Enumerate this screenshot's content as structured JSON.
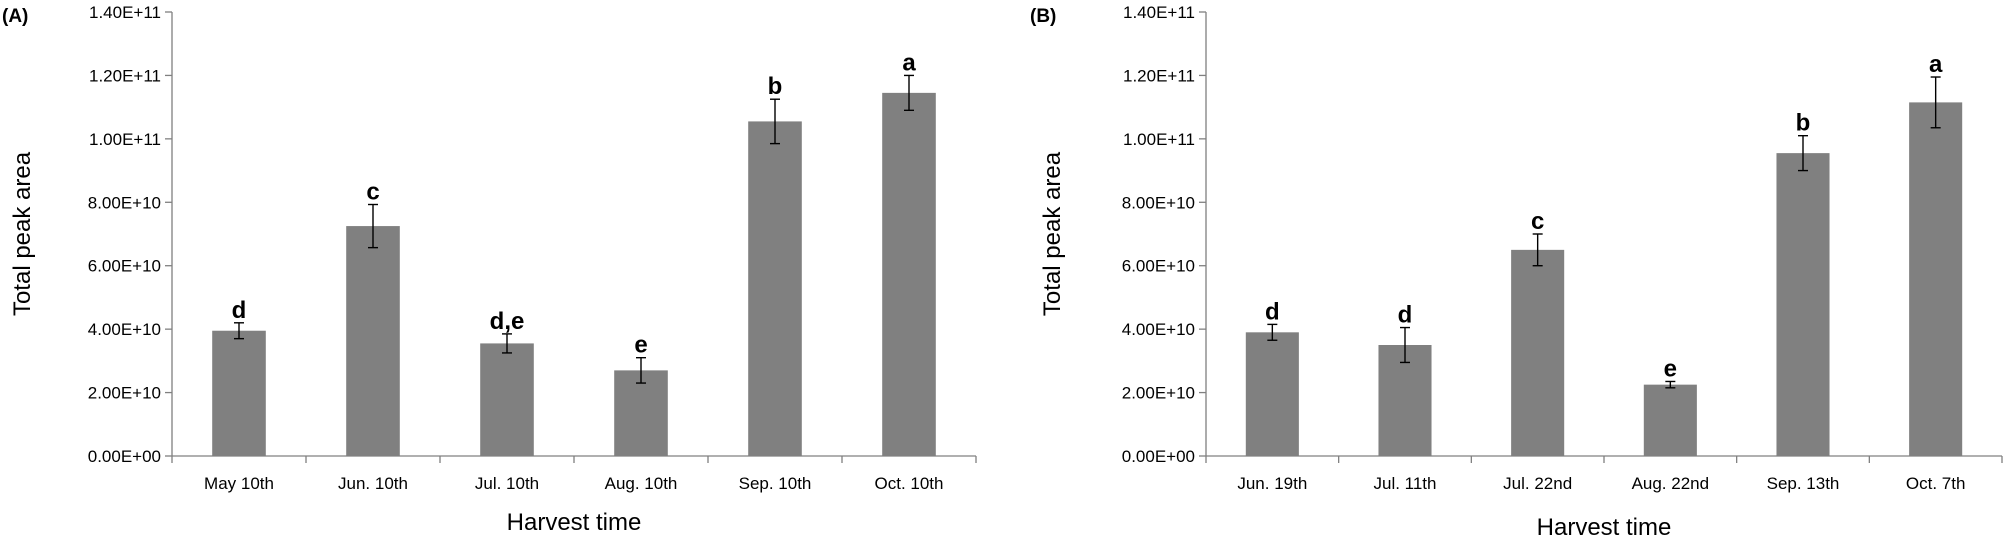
{
  "chart_data": [
    {
      "type": "bar",
      "panel_label": "(A)",
      "title": "",
      "xlabel": "Harvest time",
      "ylabel": "Total peak area",
      "ylim": [
        0,
        140000000000
      ],
      "yticks": [
        0,
        20000000000,
        40000000000,
        60000000000,
        80000000000,
        100000000000,
        120000000000,
        140000000000
      ],
      "ytick_labels": [
        "0.00E+00",
        "2.00E+10",
        "4.00E+10",
        "6.00E+10",
        "8.00E+10",
        "1.00E+11",
        "1.20E+11",
        "1.40E+11"
      ],
      "categories": [
        "May 10th",
        "Jun. 10th",
        "Jul. 10th",
        "Aug. 10th",
        "Sep. 10th",
        "Oct. 10th"
      ],
      "values": [
        39500000000,
        72500000000,
        35500000000,
        27000000000,
        105500000000,
        114500000000
      ],
      "errors": [
        2500000000,
        6800000000,
        3000000000,
        4000000000,
        7000000000,
        5500000000
      ],
      "significance_labels": [
        "d",
        "c",
        "d,e",
        "e",
        "b",
        "a"
      ],
      "bar_color": "#808080",
      "grid": false
    },
    {
      "type": "bar",
      "panel_label": "(B)",
      "title": "",
      "xlabel": "Harvest time",
      "ylabel": "Total peak area",
      "ylim": [
        0,
        140000000000
      ],
      "yticks": [
        0,
        20000000000,
        40000000000,
        60000000000,
        80000000000,
        100000000000,
        120000000000,
        140000000000
      ],
      "ytick_labels": [
        "0.00E+00",
        "2.00E+10",
        "4.00E+10",
        "6.00E+10",
        "8.00E+10",
        "1.00E+11",
        "1.20E+11",
        "1.40E+11"
      ],
      "categories": [
        "Jun. 19th",
        "Jul. 11th",
        "Jul. 22nd",
        "Aug. 22nd",
        "Sep. 13th",
        "Oct. 7th"
      ],
      "values": [
        39000000000,
        35000000000,
        65000000000,
        22500000000,
        95500000000,
        111500000000
      ],
      "errors": [
        2500000000,
        5500000000,
        5000000000,
        1000000000,
        5500000000,
        8000000000
      ],
      "significance_labels": [
        "d",
        "d",
        "c",
        "e",
        "b",
        "a"
      ],
      "bar_color": "#808080",
      "grid": false
    }
  ]
}
